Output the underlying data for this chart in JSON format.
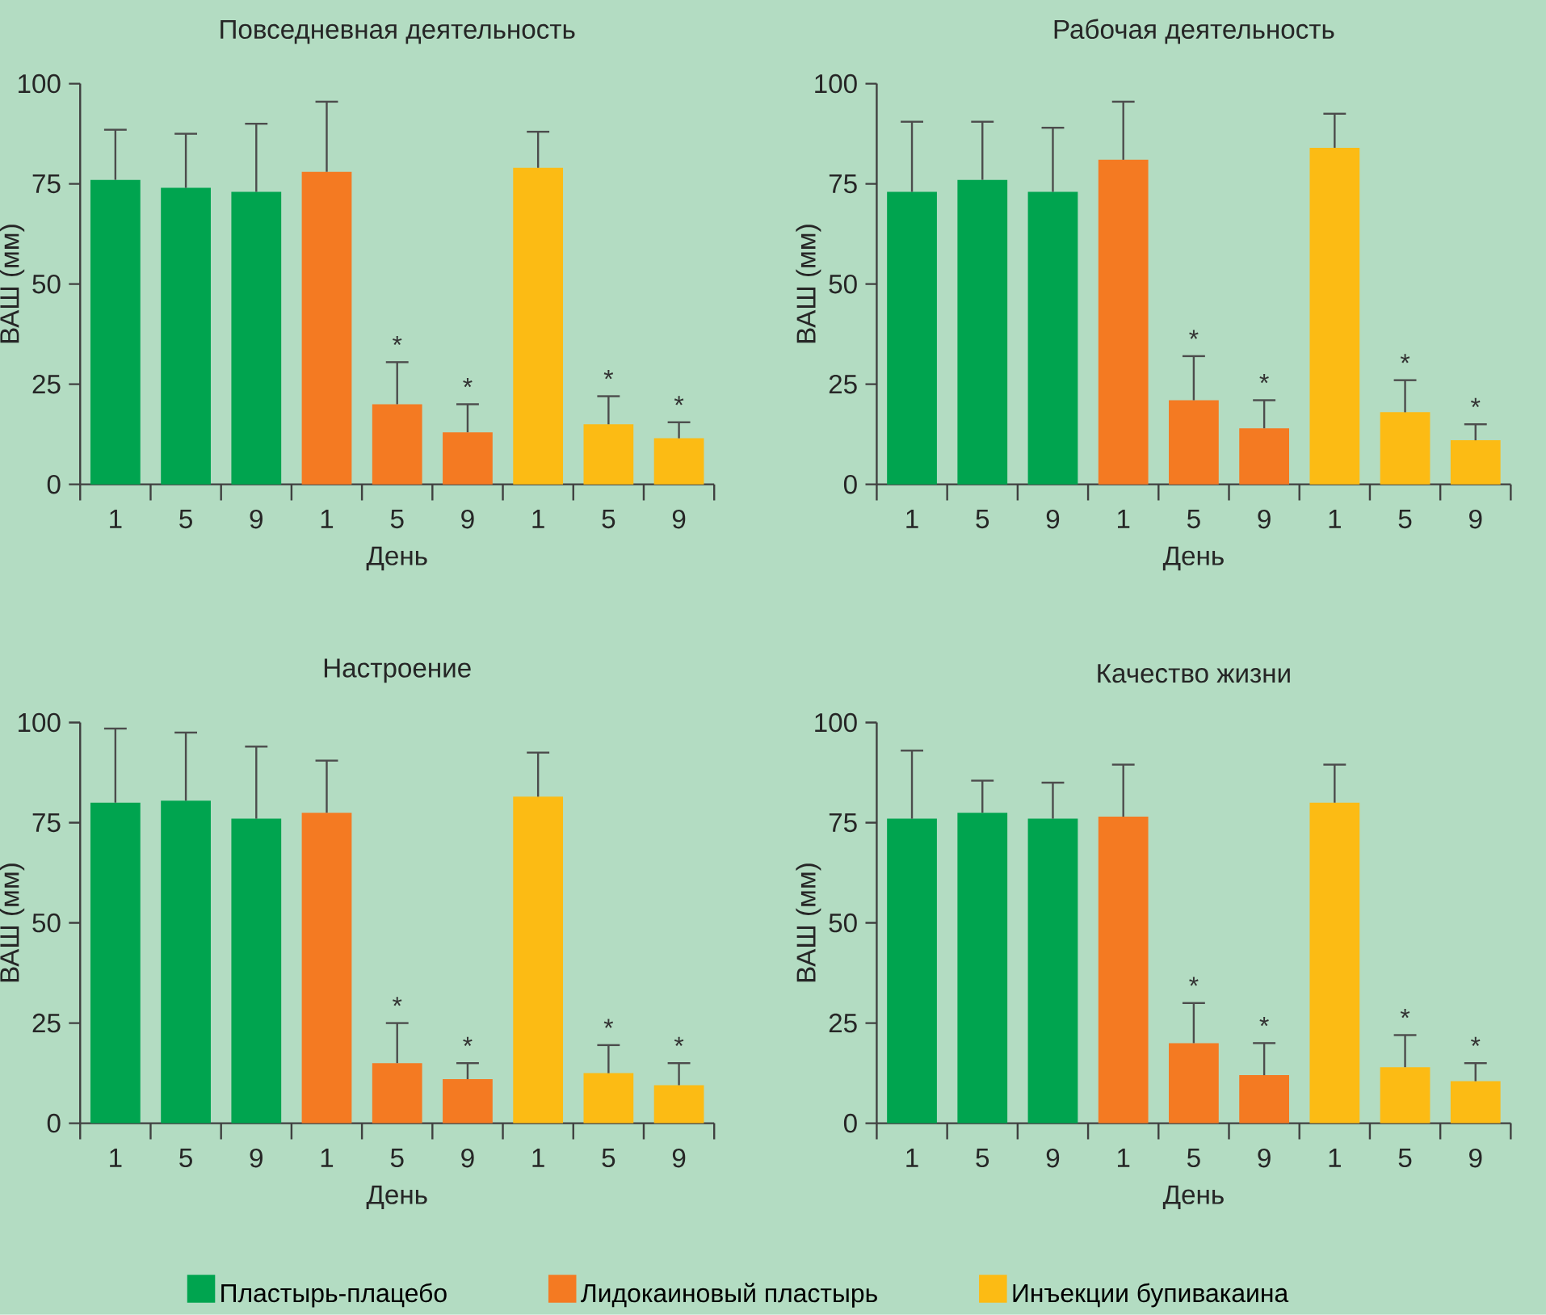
{
  "chart_data": [
    {
      "type": "bar",
      "title": "Повседневная деятельность",
      "xlabel": "День",
      "ylabel": "ВАШ (мм)",
      "categories": [
        "1",
        "5",
        "9",
        "1",
        "5",
        "9",
        "1",
        "5",
        "9"
      ],
      "ylim": [
        0,
        100
      ],
      "yticks": [
        0,
        25,
        50,
        75,
        100
      ],
      "series": [
        {
          "color": "#00a44f",
          "values": [
            76,
            74,
            73,
            null,
            null,
            null,
            null,
            null,
            null
          ],
          "errors": [
            [
              76,
              88.5
            ],
            [
              74,
              87.5
            ],
            [
              73,
              90
            ],
            null,
            null,
            null,
            null,
            null,
            null
          ]
        },
        {
          "color": "#f47a22",
          "values": [
            null,
            null,
            null,
            78,
            20,
            13,
            null,
            null,
            null
          ],
          "errors": [
            null,
            null,
            null,
            [
              78,
              95.5
            ],
            [
              20,
              30.5
            ],
            [
              13,
              20
            ],
            null,
            null,
            null
          ],
          "value_labels": [
            null,
            null,
            null,
            null,
            "*",
            "*",
            null,
            null,
            null
          ]
        },
        {
          "color": "#fcbb14",
          "values": [
            null,
            null,
            null,
            null,
            null,
            null,
            79,
            15,
            11.5
          ],
          "errors": [
            null,
            null,
            null,
            null,
            null,
            null,
            [
              79,
              88
            ],
            [
              15,
              22
            ],
            [
              11.5,
              15.5
            ]
          ],
          "value_labels": [
            null,
            null,
            null,
            null,
            null,
            null,
            null,
            "*",
            "*"
          ]
        }
      ]
    },
    {
      "type": "bar",
      "title": "Рабочая деятельность",
      "xlabel": "День",
      "ylabel": "ВАШ (мм)",
      "categories": [
        "1",
        "5",
        "9",
        "1",
        "5",
        "9",
        "1",
        "5",
        "9"
      ],
      "ylim": [
        0,
        100
      ],
      "yticks": [
        0,
        25,
        50,
        75,
        100
      ],
      "series": [
        {
          "color": "#00a44f",
          "values": [
            73,
            76,
            73,
            null,
            null,
            null,
            null,
            null,
            null
          ],
          "errors": [
            [
              73,
              90.5
            ],
            [
              76,
              90.5
            ],
            [
              73,
              89
            ],
            null,
            null,
            null,
            null,
            null,
            null
          ]
        },
        {
          "color": "#f47a22",
          "values": [
            null,
            null,
            null,
            81,
            21,
            14,
            null,
            null,
            null
          ],
          "errors": [
            null,
            null,
            null,
            [
              81,
              95.5
            ],
            [
              21,
              32
            ],
            [
              14,
              21
            ],
            null,
            null,
            null
          ],
          "value_labels": [
            null,
            null,
            null,
            null,
            "*",
            "*",
            null,
            null,
            null
          ]
        },
        {
          "color": "#fcbb14",
          "values": [
            null,
            null,
            null,
            null,
            null,
            null,
            84,
            18,
            11
          ],
          "errors": [
            null,
            null,
            null,
            null,
            null,
            null,
            [
              84,
              92.5
            ],
            [
              18,
              26
            ],
            [
              11,
              15
            ]
          ],
          "value_labels": [
            null,
            null,
            null,
            null,
            null,
            null,
            null,
            "*",
            "*"
          ]
        }
      ]
    },
    {
      "type": "bar",
      "title": "Настроение",
      "xlabel": "День",
      "ylabel": "ВАШ (мм)",
      "categories": [
        "1",
        "5",
        "9",
        "1",
        "5",
        "9",
        "1",
        "5",
        "9"
      ],
      "ylim": [
        0,
        100
      ],
      "yticks": [
        0,
        25,
        50,
        75,
        100
      ],
      "series": [
        {
          "color": "#00a44f",
          "values": [
            80,
            80.5,
            76,
            null,
            null,
            null,
            null,
            null,
            null
          ],
          "errors": [
            [
              80,
              98.5
            ],
            [
              80.5,
              97.5
            ],
            [
              76,
              94
            ],
            null,
            null,
            null,
            null,
            null,
            null
          ]
        },
        {
          "color": "#f47a22",
          "values": [
            null,
            null,
            null,
            77.5,
            15,
            11,
            null,
            null,
            null
          ],
          "errors": [
            null,
            null,
            null,
            [
              77.5,
              90.5
            ],
            [
              15,
              25
            ],
            [
              11,
              15
            ],
            null,
            null,
            null
          ],
          "value_labels": [
            null,
            null,
            null,
            null,
            "*",
            "*",
            null,
            null,
            null
          ]
        },
        {
          "color": "#fcbb14",
          "values": [
            null,
            null,
            null,
            null,
            null,
            null,
            81.5,
            12.5,
            9.5
          ],
          "errors": [
            null,
            null,
            null,
            null,
            null,
            null,
            [
              81.5,
              92.5
            ],
            [
              12.5,
              19.5
            ],
            [
              9.5,
              15
            ]
          ],
          "value_labels": [
            null,
            null,
            null,
            null,
            null,
            null,
            null,
            "*",
            "*"
          ]
        }
      ]
    },
    {
      "type": "bar",
      "title": "Качество жизни",
      "xlabel": "День",
      "ylabel": "ВАШ (мм)",
      "categories": [
        "1",
        "5",
        "9",
        "1",
        "5",
        "9",
        "1",
        "5",
        "9"
      ],
      "ylim": [
        0,
        100
      ],
      "yticks": [
        0,
        25,
        50,
        75,
        100
      ],
      "legend": "bottom",
      "series": [
        {
          "name": "Пластырь-плацебо",
          "color": "#00a44f",
          "values": [
            76,
            77.5,
            76,
            null,
            null,
            null,
            null,
            null,
            null
          ],
          "errors": [
            [
              76,
              93
            ],
            [
              77.5,
              85.5
            ],
            [
              76,
              85
            ],
            null,
            null,
            null,
            null,
            null,
            null
          ]
        },
        {
          "name": "Лидокаиновый пластырь",
          "color": "#f47a22",
          "values": [
            null,
            null,
            null,
            76.5,
            20,
            12,
            null,
            null,
            null
          ],
          "errors": [
            null,
            null,
            null,
            [
              76.5,
              89.5
            ],
            [
              20,
              30
            ],
            [
              12,
              20
            ],
            null,
            null,
            null
          ],
          "value_labels": [
            null,
            null,
            null,
            null,
            "*",
            "*",
            null,
            null,
            null
          ]
        },
        {
          "name": "Инъекции бупивакаина",
          "color": "#fcbb14",
          "values": [
            null,
            null,
            null,
            null,
            null,
            null,
            80,
            14,
            10.5
          ],
          "errors": [
            null,
            null,
            null,
            null,
            null,
            null,
            [
              80,
              89.5
            ],
            [
              14,
              22
            ],
            [
              10.5,
              15
            ]
          ],
          "value_labels": [
            null,
            null,
            null,
            null,
            null,
            null,
            null,
            "*",
            "*"
          ]
        }
      ]
    }
  ]
}
